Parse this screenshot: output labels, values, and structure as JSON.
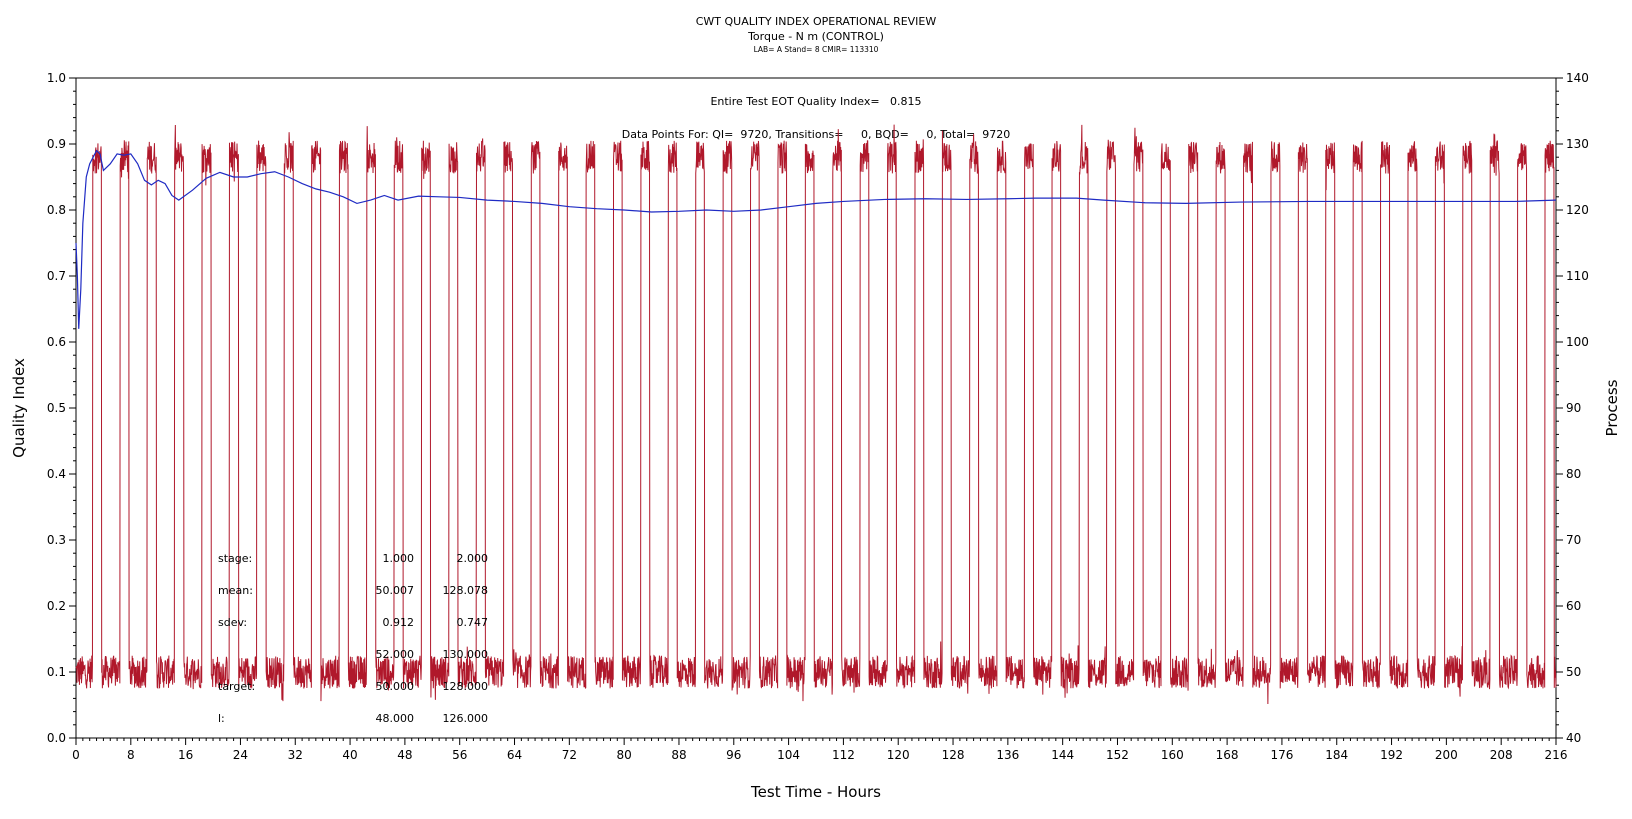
{
  "chart_data": {
    "type": "line",
    "title": "CWT QUALITY INDEX OPERATIONAL REVIEW",
    "subtitle": "Torque - N m (CONTROL)",
    "subtitle2": "LAB= A Stand= 8 CMIR= 113310",
    "annotations": {
      "eot_line": "Entire Test EOT Quality Index=   0.815",
      "points_line": "Data Points For: QI=  9720, Transitions=     0, BQD=     0, Total=  9720"
    },
    "xlabel": "Test Time - Hours",
    "ylabel_left": "Quality Index",
    "ylabel_right": "Process",
    "xlim": [
      0,
      216
    ],
    "ylim_left": [
      0.0,
      1.0
    ],
    "ylim_right": [
      40,
      140
    ],
    "x_ticks": [
      "0",
      "8",
      "16",
      "24",
      "32",
      "40",
      "48",
      "56",
      "64",
      "72",
      "80",
      "88",
      "96",
      "104",
      "112",
      "120",
      "128",
      "136",
      "144",
      "152",
      "160",
      "168",
      "176",
      "184",
      "192",
      "200",
      "208",
      "216"
    ],
    "y_left_ticks": [
      "0.0",
      "0.1",
      "0.2",
      "0.3",
      "0.4",
      "0.5",
      "0.6",
      "0.7",
      "0.8",
      "0.9",
      "1.0"
    ],
    "y_right_ticks": [
      "40",
      "50",
      "60",
      "70",
      "80",
      "90",
      "100",
      "110",
      "120",
      "130",
      "140"
    ],
    "grid": false,
    "colors": {
      "quality_index": "#1f2bc4",
      "process": "#b0182b"
    },
    "series": [
      {
        "axis": "left",
        "x": [
          0,
          0.2,
          0.4,
          0.7,
          1.0,
          1.5,
          2.0,
          2.5,
          3.0,
          3.5,
          4.0,
          5.0,
          6.0,
          7.0,
          8.0,
          9.0,
          10.0,
          11.0,
          12.0,
          13.0,
          14.0,
          15.0,
          17.0,
          19.0,
          21.0,
          23.0,
          25.0,
          27.0,
          29.0,
          31.0,
          33.0,
          35.0,
          37.0,
          39.0,
          41.0,
          43.0,
          45.0,
          47.0,
          50.0,
          53.0,
          56.0,
          60.0,
          64.0,
          68.0,
          72.0,
          76.0,
          80.0,
          84.0,
          88.0,
          92.0,
          96.0,
          100.0,
          104.0,
          108.0,
          112.0,
          118.0,
          124.0,
          130.0,
          136.0,
          140.0,
          146.0,
          150.0,
          156.0,
          162.0,
          170.0,
          180.0,
          190.0,
          200.0,
          210.0,
          216.0
        ],
        "values": [
          0.75,
          0.7,
          0.62,
          0.68,
          0.78,
          0.85,
          0.87,
          0.88,
          0.89,
          0.885,
          0.86,
          0.87,
          0.885,
          0.883,
          0.885,
          0.87,
          0.845,
          0.838,
          0.845,
          0.84,
          0.822,
          0.815,
          0.83,
          0.848,
          0.857,
          0.85,
          0.85,
          0.855,
          0.858,
          0.85,
          0.84,
          0.832,
          0.827,
          0.82,
          0.81,
          0.815,
          0.822,
          0.815,
          0.821,
          0.82,
          0.819,
          0.815,
          0.813,
          0.81,
          0.805,
          0.802,
          0.8,
          0.797,
          0.798,
          0.8,
          0.798,
          0.8,
          0.805,
          0.81,
          0.813,
          0.816,
          0.817,
          0.816,
          0.817,
          0.818,
          0.818,
          0.815,
          0.811,
          0.81,
          0.812,
          0.813,
          0.813,
          0.813,
          0.813,
          0.815
        ]
      },
      {
        "axis": "right",
        "pattern": "square-wave",
        "low_level": 50,
        "high_level": 128,
        "cycle_hours": 4,
        "first_rise_hour": 2.4,
        "duty_high": 0.33,
        "noise": 2.5,
        "end_hour": 216
      }
    ],
    "stats_table": {
      "rows": [
        {
          "label": "stage:",
          "v1": "1.000",
          "v2": "2.000"
        },
        {
          "label": "mean:",
          "v1": "50.007",
          "v2": "128.078"
        },
        {
          "label": "sdev:",
          "v1": "0.912",
          "v2": "0.747"
        },
        {
          "label": "",
          "v1": "52.000",
          "v2": "130.000"
        },
        {
          "label": "target:",
          "v1": "50.000",
          "v2": "128.000"
        },
        {
          "label": "l:",
          "v1": "48.000",
          "v2": "126.000"
        }
      ]
    }
  }
}
